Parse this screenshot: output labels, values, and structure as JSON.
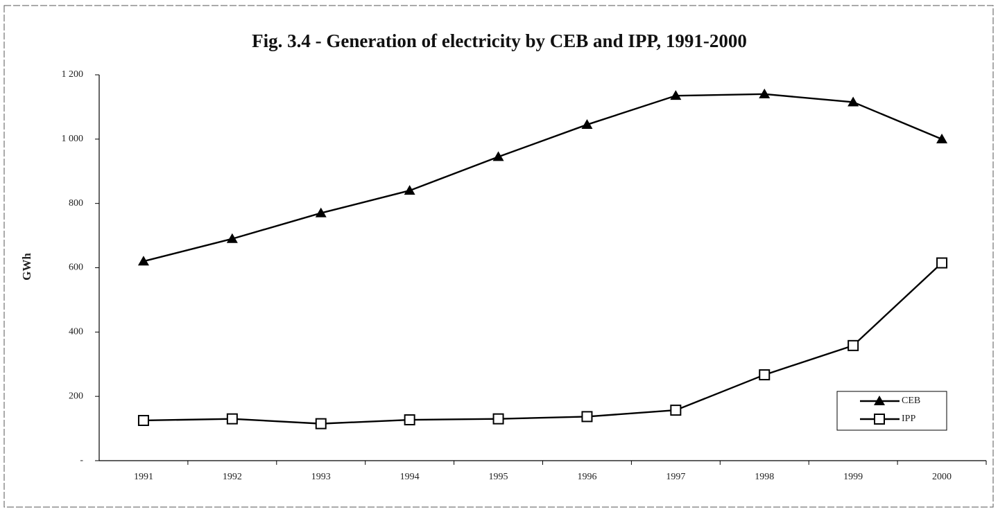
{
  "chart_data": {
    "type": "line",
    "title": "Fig. 3.4 - Generation of electricity by CEB and IPP, 1991-2000",
    "y_label": "GWh",
    "categories": [
      "1991",
      "1992",
      "1993",
      "1994",
      "1995",
      "1996",
      "1997",
      "1998",
      "1999",
      "2000"
    ],
    "series": [
      {
        "name": "CEB",
        "color": "#000000",
        "marker": "triangle",
        "values": [
          620,
          690,
          770,
          840,
          945,
          1045,
          1135,
          1140,
          1115,
          1000
        ]
      },
      {
        "name": "IPP",
        "color": "#000000",
        "marker": "square",
        "values": [
          125,
          130,
          115,
          127,
          130,
          137,
          157,
          267,
          358,
          615
        ]
      }
    ],
    "ylim": [
      0,
      1200
    ],
    "yticks": [
      {
        "value": 0,
        "label": "-"
      },
      200,
      400,
      600,
      800,
      {
        "value": 1000,
        "label": "1 000"
      },
      {
        "value": 1200,
        "label": "1 200"
      }
    ],
    "grid": false,
    "legend": "lower right"
  }
}
